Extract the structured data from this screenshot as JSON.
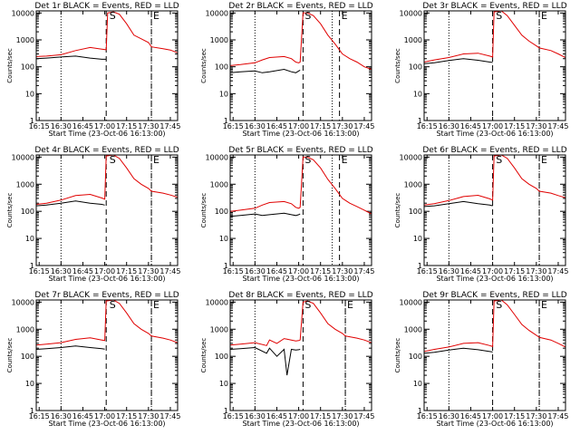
{
  "figure": {
    "panels": [
      {
        "title": "Det 1r BLACK = Events, RED = LLD",
        "xlabel": "Start Time (23-Oct-06 16:13:00)",
        "ylabel": "Counts/sec"
      },
      {
        "title": "Det 2r BLACK = Events, RED = LLD",
        "xlabel": "Start Time (23-Oct-06 16:13:00)",
        "ylabel": "Counts/sec"
      },
      {
        "title": "Det 3r BLACK = Events, RED = LLD",
        "xlabel": "Start Time (23-Oct-06 16:13:00)",
        "ylabel": "Counts/sec"
      },
      {
        "title": "Det 4r BLACK = Events, RED = LLD",
        "xlabel": "Start Time (23-Oct-06 16:13:00)",
        "ylabel": "Counts/sec"
      },
      {
        "title": "Det 5r BLACK = Events, RED = LLD",
        "xlabel": "Start Time (23-Oct-06 16:13:00)",
        "ylabel": "Counts/sec"
      },
      {
        "title": "Det 6r BLACK = Events, RED = LLD",
        "xlabel": "Start Time (23-Oct-06 16:13:00)",
        "ylabel": "Counts/sec"
      },
      {
        "title": "Det 7r BLACK = Events, RED = LLD",
        "xlabel": "Start Time (23-Oct-06 16:13:00)",
        "ylabel": "Counts/sec"
      },
      {
        "title": "Det 8r BLACK = Events, RED = LLD",
        "xlabel": "Start Time (23-Oct-06 16:13:00)",
        "ylabel": "Counts/sec"
      },
      {
        "title": "Det 9r BLACK = Events, RED = LLD",
        "xlabel": "Start Time (23-Oct-06 16:13:00)",
        "ylabel": "Counts/sec"
      }
    ]
  },
  "colors": {
    "events": "#000000",
    "lld": "#e00000",
    "axes": "#000000",
    "background": "#ffffff"
  },
  "chart_data": [
    {
      "type": "line",
      "panel": "Det 1r",
      "x": [
        "16:13",
        "16:20",
        "16:30",
        "16:40",
        "16:50",
        "16:58",
        "17:01",
        "17:02",
        "17:06",
        "17:10",
        "17:15",
        "17:20",
        "17:25",
        "17:30",
        "17:32",
        "17:40",
        "17:45",
        "17:50"
      ],
      "series": [
        {
          "name": "Events",
          "values": [
            200,
            210,
            230,
            250,
            210,
            190,
            190,
            null,
            null,
            null,
            null,
            null,
            null,
            null,
            null,
            null,
            null,
            null
          ]
        },
        {
          "name": "LLD",
          "values": [
            240,
            250,
            280,
            400,
            520,
            450,
            430,
            10000,
            11000,
            9000,
            4000,
            1500,
            1100,
            800,
            550,
            470,
            420,
            330
          ]
        }
      ],
      "xticks": [
        "16:15",
        "16:30",
        "16:45",
        "17:00",
        "17:15",
        "17:30",
        "17:45"
      ],
      "yticks": [
        "1",
        "10",
        "100",
        "1000",
        "10000"
      ],
      "ylim": [
        1,
        12000
      ],
      "yscale": "log",
      "vlines_dotted": [
        "16:30",
        "17:32"
      ],
      "vlines_dashed": [
        "17:01",
        "17:32"
      ],
      "markers": [
        {
          "label": "S",
          "x": "17:02"
        },
        {
          "label": "E",
          "x": "17:32"
        }
      ]
    },
    {
      "type": "line",
      "panel": "Det 2r",
      "x": [
        "16:13",
        "16:20",
        "16:30",
        "16:35",
        "16:40",
        "16:50",
        "16:55",
        "16:58",
        "17:00",
        "17:01",
        "17:03",
        "17:06",
        "17:10",
        "17:15",
        "17:20",
        "17:25",
        "17:30",
        "17:35",
        "17:40",
        "17:45",
        "17:50"
      ],
      "series": [
        {
          "name": "Events",
          "values": [
            60,
            65,
            70,
            60,
            65,
            80,
            65,
            60,
            70,
            75,
            null,
            null,
            null,
            null,
            null,
            null,
            null,
            null,
            null,
            null,
            null
          ]
        },
        {
          "name": "LLD",
          "values": [
            110,
            120,
            140,
            180,
            220,
            240,
            200,
            150,
            140,
            150,
            10000,
            10000,
            8000,
            4000,
            1500,
            700,
            300,
            200,
            150,
            100,
            80
          ]
        }
      ],
      "xticks": [
        "16:15",
        "16:30",
        "16:45",
        "17:00",
        "17:15",
        "17:30",
        "17:45"
      ],
      "yticks": [
        "1",
        "10",
        "100",
        "1000",
        "10000"
      ],
      "ylim": [
        1,
        12000
      ],
      "yscale": "log",
      "vlines_dotted": [
        "16:30",
        "17:23"
      ],
      "vlines_dashed": [
        "17:03",
        "17:28"
      ],
      "markers": [
        {
          "label": "S",
          "x": "17:03"
        },
        {
          "label": "E",
          "x": "17:28"
        }
      ]
    },
    {
      "type": "line",
      "panel": "Det 3r",
      "x": [
        "16:13",
        "16:20",
        "16:30",
        "16:40",
        "16:50",
        "16:58",
        "17:00",
        "17:01",
        "17:06",
        "17:10",
        "17:15",
        "17:20",
        "17:25",
        "17:30",
        "17:32",
        "17:40",
        "17:45",
        "17:50"
      ],
      "series": [
        {
          "name": "Events",
          "values": [
            130,
            140,
            170,
            200,
            175,
            150,
            145,
            null,
            null,
            null,
            null,
            null,
            null,
            null,
            null,
            null,
            null,
            null
          ]
        },
        {
          "name": "LLD",
          "values": [
            150,
            180,
            220,
            300,
            320,
            250,
            230,
            11000,
            12000,
            8000,
            3500,
            1500,
            900,
            600,
            500,
            400,
            300,
            220
          ]
        }
      ],
      "xticks": [
        "16:15",
        "16:30",
        "16:45",
        "17:00",
        "17:15",
        "17:30",
        "17:45"
      ],
      "yticks": [
        "1",
        "10",
        "100",
        "1000",
        "10000"
      ],
      "ylim": [
        1,
        12000
      ],
      "yscale": "log",
      "vlines_dotted": [
        "16:30",
        "17:32"
      ],
      "vlines_dashed": [
        "17:00",
        "17:32"
      ],
      "markers": [
        {
          "label": "S",
          "x": "17:01"
        },
        {
          "label": "E",
          "x": "17:32"
        }
      ]
    },
    {
      "type": "line",
      "panel": "Det 4r",
      "x": [
        "16:13",
        "16:20",
        "16:30",
        "16:40",
        "16:50",
        "16:58",
        "17:00",
        "17:01",
        "17:06",
        "17:10",
        "17:15",
        "17:20",
        "17:25",
        "17:30",
        "17:32",
        "17:40",
        "17:45",
        "17:50"
      ],
      "series": [
        {
          "name": "Events",
          "values": [
            160,
            170,
            200,
            240,
            200,
            180,
            170,
            null,
            null,
            null,
            null,
            null,
            null,
            null,
            null,
            null,
            null,
            null
          ]
        },
        {
          "name": "LLD",
          "values": [
            180,
            200,
            260,
            380,
            420,
            310,
            280,
            11000,
            12000,
            9000,
            4000,
            1600,
            1000,
            700,
            550,
            470,
            400,
            330
          ]
        }
      ],
      "xticks": [
        "16:15",
        "16:30",
        "16:45",
        "17:00",
        "17:15",
        "17:30",
        "17:45"
      ],
      "yticks": [
        "1",
        "10",
        "100",
        "1000",
        "10000"
      ],
      "ylim": [
        1,
        12000
      ],
      "yscale": "log",
      "vlines_dotted": [
        "16:30",
        "17:32"
      ],
      "vlines_dashed": [
        "17:01",
        "17:32"
      ],
      "markers": [
        {
          "label": "S",
          "x": "17:02"
        },
        {
          "label": "E",
          "x": "17:32"
        }
      ]
    },
    {
      "type": "line",
      "panel": "Det 5r",
      "x": [
        "16:13",
        "16:20",
        "16:30",
        "16:35",
        "16:40",
        "16:50",
        "16:55",
        "16:58",
        "17:00",
        "17:01",
        "17:03",
        "17:06",
        "17:10",
        "17:15",
        "17:20",
        "17:25",
        "17:30",
        "17:35",
        "17:40",
        "17:45",
        "17:50"
      ],
      "series": [
        {
          "name": "Events",
          "values": [
            65,
            70,
            80,
            70,
            75,
            85,
            75,
            70,
            75,
            80,
            null,
            null,
            null,
            null,
            null,
            null,
            null,
            null,
            null,
            null,
            null
          ]
        },
        {
          "name": "LLD",
          "values": [
            100,
            110,
            130,
            170,
            210,
            230,
            190,
            140,
            130,
            140,
            10000,
            10000,
            8000,
            4000,
            1500,
            700,
            300,
            200,
            150,
            110,
            80
          ]
        }
      ],
      "xticks": [
        "16:15",
        "16:30",
        "16:45",
        "17:00",
        "17:15",
        "17:30",
        "17:45"
      ],
      "yticks": [
        "1",
        "10",
        "100",
        "1000",
        "10000"
      ],
      "ylim": [
        1,
        12000
      ],
      "yscale": "log",
      "vlines_dotted": [
        "16:30",
        "17:23"
      ],
      "vlines_dashed": [
        "17:03",
        "17:28"
      ],
      "markers": [
        {
          "label": "S",
          "x": "17:03"
        },
        {
          "label": "E",
          "x": "17:28"
        }
      ]
    },
    {
      "type": "line",
      "panel": "Det 6r",
      "x": [
        "16:13",
        "16:20",
        "16:30",
        "16:40",
        "16:50",
        "16:58",
        "17:00",
        "17:01",
        "17:06",
        "17:10",
        "17:15",
        "17:20",
        "17:25",
        "17:30",
        "17:32",
        "17:40",
        "17:45",
        "17:50"
      ],
      "series": [
        {
          "name": "Events",
          "values": [
            150,
            160,
            190,
            230,
            190,
            170,
            160,
            null,
            null,
            null,
            null,
            null,
            null,
            null,
            null,
            null,
            null,
            null
          ]
        },
        {
          "name": "LLD",
          "values": [
            170,
            190,
            250,
            350,
            390,
            290,
            260,
            11000,
            12000,
            9000,
            4000,
            1600,
            1000,
            700,
            550,
            470,
            380,
            320
          ]
        }
      ],
      "xticks": [
        "16:15",
        "16:30",
        "16:45",
        "17:00",
        "17:15",
        "17:30",
        "17:45"
      ],
      "yticks": [
        "1",
        "10",
        "100",
        "1000",
        "10000"
      ],
      "ylim": [
        1,
        12000
      ],
      "yscale": "log",
      "vlines_dotted": [
        "16:30",
        "17:32"
      ],
      "vlines_dashed": [
        "17:00",
        "17:32"
      ],
      "markers": [
        {
          "label": "S",
          "x": "17:01"
        },
        {
          "label": "E",
          "x": "17:32"
        }
      ]
    },
    {
      "type": "line",
      "panel": "Det 7r",
      "x": [
        "16:13",
        "16:20",
        "16:30",
        "16:40",
        "16:50",
        "16:58",
        "17:00",
        "17:01",
        "17:06",
        "17:10",
        "17:15",
        "17:20",
        "17:25",
        "17:30",
        "17:32",
        "17:40",
        "17:45",
        "17:50"
      ],
      "series": [
        {
          "name": "Events",
          "values": [
            180,
            190,
            210,
            240,
            210,
            190,
            185,
            null,
            null,
            null,
            null,
            null,
            null,
            null,
            null,
            null,
            null,
            null
          ]
        },
        {
          "name": "LLD",
          "values": [
            260,
            280,
            320,
            420,
            480,
            400,
            380,
            11000,
            12000,
            9000,
            4000,
            1600,
            1000,
            700,
            560,
            470,
            400,
            320
          ]
        }
      ],
      "xticks": [
        "16:15",
        "16:30",
        "16:45",
        "17:00",
        "17:15",
        "17:30",
        "17:45"
      ],
      "yticks": [
        "1",
        "10",
        "100",
        "1000",
        "10000"
      ],
      "ylim": [
        1,
        12000
      ],
      "yscale": "log",
      "vlines_dotted": [
        "16:30",
        "17:32"
      ],
      "vlines_dashed": [
        "17:01",
        "17:32"
      ],
      "markers": [
        {
          "label": "S",
          "x": "17:02"
        },
        {
          "label": "E",
          "x": "17:32"
        }
      ]
    },
    {
      "type": "line",
      "panel": "Det 8r",
      "x": [
        "16:13",
        "16:20",
        "16:30",
        "16:38",
        "16:40",
        "16:45",
        "16:50",
        "16:52",
        "16:55",
        "16:58",
        "17:00",
        "17:01",
        "17:03",
        "17:06",
        "17:10",
        "17:15",
        "17:20",
        "17:25",
        "17:30",
        "17:32",
        "17:40",
        "17:45",
        "17:50"
      ],
      "series": [
        {
          "name": "Events",
          "values": [
            180,
            190,
            210,
            130,
            200,
            100,
            180,
            20,
            180,
            170,
            175,
            180,
            null,
            null,
            null,
            null,
            null,
            null,
            null,
            null,
            null,
            null,
            null
          ]
        },
        {
          "name": "LLD",
          "values": [
            260,
            280,
            320,
            250,
            400,
            300,
            450,
            430,
            400,
            370,
            380,
            400,
            10000,
            11000,
            9000,
            4000,
            1600,
            1000,
            700,
            560,
            470,
            400,
            320
          ]
        }
      ],
      "xticks": [
        "16:15",
        "16:30",
        "16:45",
        "17:00",
        "17:15",
        "17:30",
        "17:45"
      ],
      "yticks": [
        "1",
        "10",
        "100",
        "1000",
        "10000"
      ],
      "ylim": [
        1,
        12000
      ],
      "yscale": "log",
      "vlines_dotted": [
        "16:30",
        "17:32"
      ],
      "vlines_dashed": [
        "17:03",
        "17:32"
      ],
      "markers": [
        {
          "label": "S",
          "x": "17:03"
        },
        {
          "label": "E",
          "x": "17:32"
        }
      ]
    },
    {
      "type": "line",
      "panel": "Det 9r",
      "x": [
        "16:13",
        "16:20",
        "16:30",
        "16:40",
        "16:50",
        "16:58",
        "17:00",
        "17:01",
        "17:06",
        "17:10",
        "17:15",
        "17:20",
        "17:25",
        "17:30",
        "17:32",
        "17:40",
        "17:45",
        "17:50"
      ],
      "series": [
        {
          "name": "Events",
          "values": [
            130,
            140,
            170,
            200,
            175,
            150,
            145,
            null,
            null,
            null,
            null,
            null,
            null,
            null,
            null,
            null,
            null,
            null
          ]
        },
        {
          "name": "LLD",
          "values": [
            150,
            180,
            220,
            300,
            320,
            250,
            230,
            11000,
            12000,
            8000,
            3500,
            1500,
            900,
            600,
            500,
            400,
            300,
            220
          ]
        }
      ],
      "xticks": [
        "16:15",
        "16:30",
        "16:45",
        "17:00",
        "17:15",
        "17:30",
        "17:45"
      ],
      "yticks": [
        "1",
        "10",
        "100",
        "1000",
        "10000"
      ],
      "ylim": [
        1,
        12000
      ],
      "yscale": "log",
      "vlines_dotted": [
        "16:30",
        "17:32"
      ],
      "vlines_dashed": [
        "17:00",
        "17:32"
      ],
      "markers": [
        {
          "label": "S",
          "x": "17:01"
        },
        {
          "label": "E",
          "x": "17:32"
        }
      ]
    }
  ]
}
